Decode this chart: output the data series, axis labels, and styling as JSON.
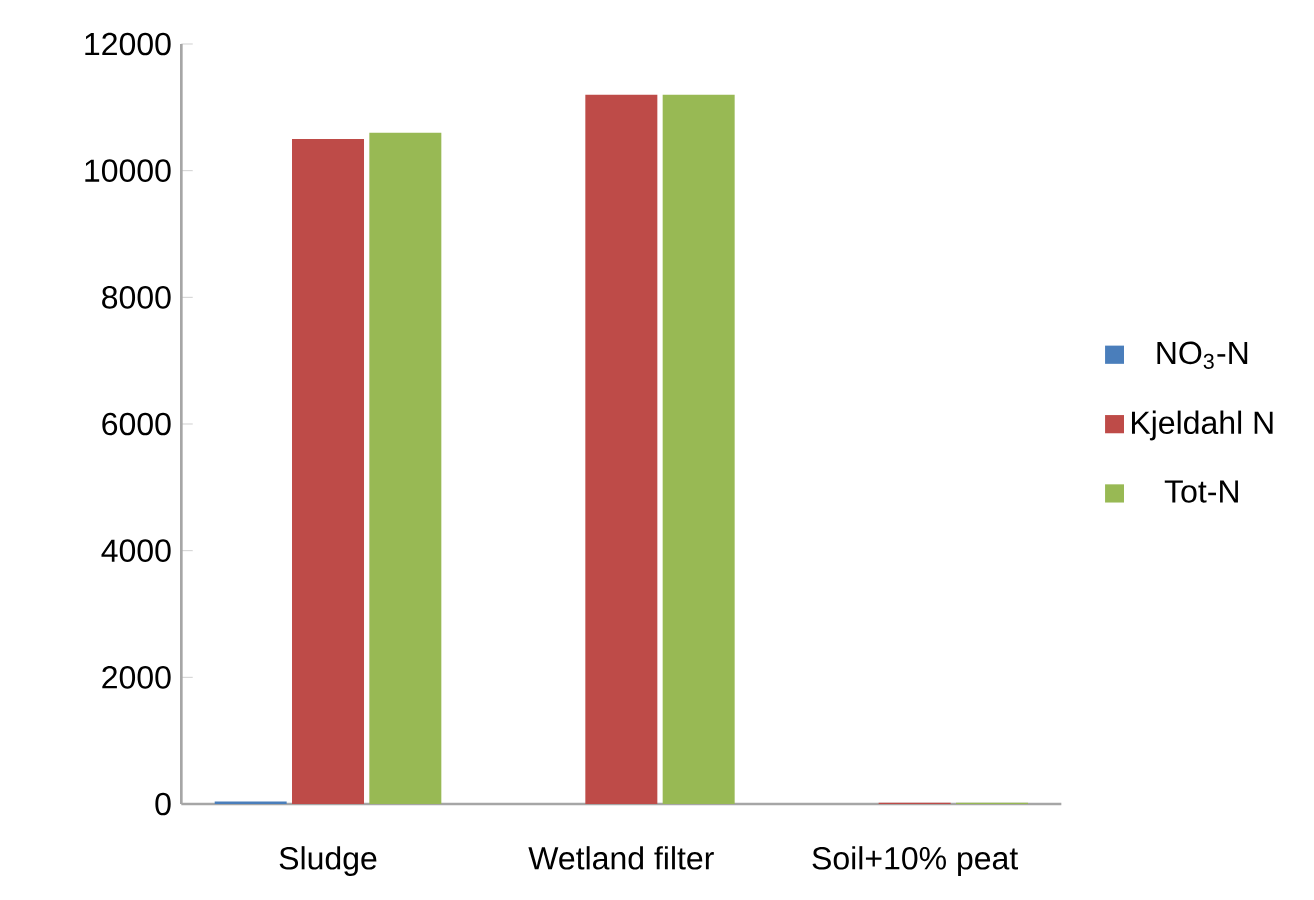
{
  "chart_data": {
    "type": "bar",
    "categories": [
      "Sludge",
      "Wetland filter",
      "Soil+10% peat"
    ],
    "series": [
      {
        "name": "NO$_{3}$-N",
        "color": "#4a7ebb",
        "values": [
          40,
          0,
          null
        ]
      },
      {
        "name": "Kjeldahl N",
        "color": "#be4b48",
        "values": [
          10500,
          11200,
          20
        ]
      },
      {
        "name": "Tot-N",
        "color": "#98b954",
        "values": [
          10600,
          11200,
          20
        ]
      }
    ],
    "ylim": [
      0,
      12000
    ],
    "yticks": [
      0,
      2000,
      4000,
      6000,
      8000,
      10000,
      12000
    ],
    "grid": false,
    "legend": "right"
  }
}
